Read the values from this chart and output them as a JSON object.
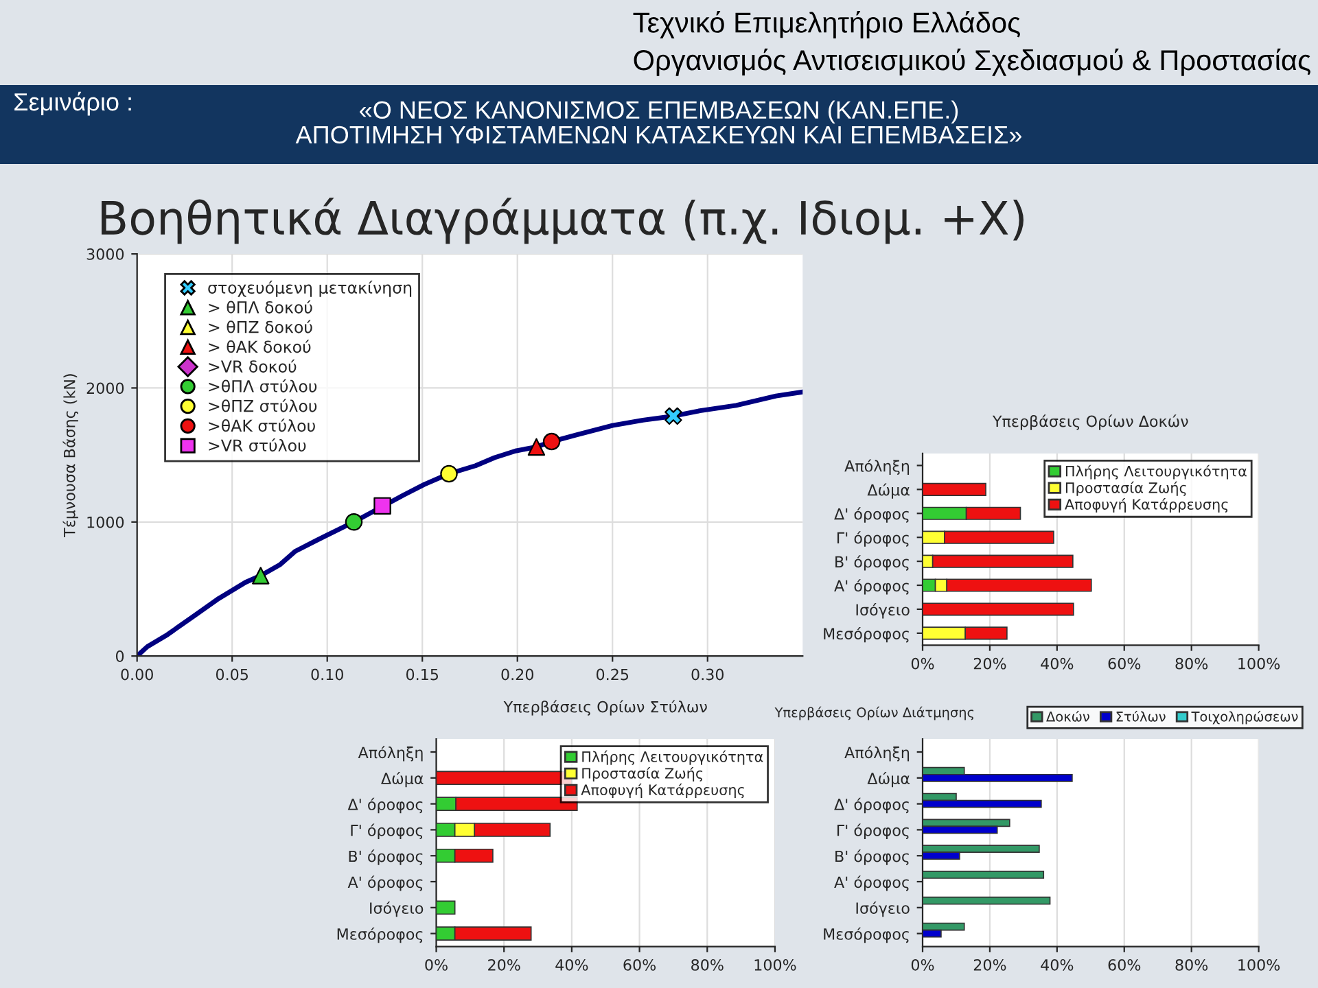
{
  "chart_data": [
    {
      "type": "line",
      "title": "Βοηθητικά Διαγράμματα (π.χ. Ιδιομ. +Χ)",
      "ylabel": "Τέμνουσα Βάσης (kN)",
      "annotations": [
        "Τεχνικό Επιμελητήριο Ελλάδος",
        "Οργανισμός Αντισεισμικού Σχεδιασμού & Προστασίας",
        "Σεμινάριο :",
        "«Ο ΝΕΟΣ ΚΑΝΟΝΙΣΜΟΣ ΕΠΕΜΒΑΣΕΩΝ (ΚΑΝ.ΕΠΕ.)\nΑΠΟΤΙΜΗΣΗ ΥΦΙΣΤΑΜΕΝΩΝ ΚΑΤΑΣΚΕΥΩΝ ΚΑΙ ΕΠΕΜΒΑΣΕΙΣ»"
      ],
      "xlim": [
        0,
        0.35
      ],
      "ylim": [
        0,
        3000
      ],
      "xticks": [
        {
          "value": 0,
          "label": "0.00"
        },
        {
          "value": 0.05,
          "label": "0.05"
        },
        {
          "value": 0.1,
          "label": "0.10"
        },
        {
          "value": 0.15,
          "label": "0.15"
        },
        {
          "value": 0.2,
          "label": "0.20"
        },
        {
          "value": 0.25,
          "label": "0.25"
        },
        {
          "value": 0.3,
          "label": "0.30"
        }
      ],
      "yticks": [
        0,
        1000,
        2000,
        3000
      ],
      "grid": true,
      "legend": "top left",
      "series": [
        {
          "type": "line",
          "color": "#000080",
          "marker": "none",
          "x": [
            0,
            0.0054,
            0.016,
            0.03,
            0.043,
            0.057,
            0.065,
            0.075,
            0.083,
            0.094,
            0.0996,
            0.114,
            0.14,
            0.151,
            0.164,
            0.178,
            0.188,
            0.199,
            0.21,
            0.218,
            0.231,
            0.25,
            0.266,
            0.282,
            0.296,
            0.315,
            0.336,
            0.35
          ],
          "values": [
            0,
            70,
            160,
            300,
            430,
            550,
            600,
            680,
            780,
            860,
            900,
            1000,
            1200,
            1280,
            1360,
            1420,
            1480,
            1530,
            1560,
            1600,
            1650,
            1720,
            1760,
            1790,
            1830,
            1870,
            1940,
            1970
          ]
        },
        {
          "type": "scatter",
          "name": "στοχευόμενη μετακίνηση",
          "color": "#33ccff",
          "marker": "cross",
          "x": [
            0.282
          ],
          "values": [
            1790
          ]
        },
        {
          "type": "scatter",
          "name": "> θΠΛ δοκού",
          "color": "#33cc33",
          "marker": "triangle",
          "x": [
            0.065
          ],
          "values": [
            600
          ]
        },
        {
          "type": "scatter",
          "name": "> θΠΖ δοκού",
          "color": "#ffff33",
          "marker": "triangle"
        },
        {
          "type": "scatter",
          "name": "> θΑΚ δοκού",
          "color": "#ee1111",
          "marker": "triangle",
          "x": [
            0.21
          ],
          "values": [
            1560
          ]
        },
        {
          "type": "scatter",
          "name": ">VR δοκού",
          "color": "#cc33cc",
          "marker": "diamond"
        },
        {
          "type": "scatter",
          "name": ">θΠΛ στύλου",
          "color": "#33cc33",
          "marker": "circle",
          "x": [
            0.114
          ],
          "values": [
            1000
          ]
        },
        {
          "type": "scatter",
          "name": ">θΠΖ στύλου",
          "color": "#ffff33",
          "marker": "circle",
          "x": [
            0.164
          ],
          "values": [
            1360
          ]
        },
        {
          "type": "scatter",
          "name": ">θΑΚ στύλου",
          "color": "#ee1111",
          "marker": "circle",
          "x": [
            0.218
          ],
          "values": [
            1600
          ]
        },
        {
          "type": "scatter",
          "name": ">VR στύλου",
          "color": "#ee33ee",
          "marker": "square",
          "x": [
            0.129
          ],
          "values": [
            1120
          ]
        }
      ]
    },
    {
      "type": "bar",
      "orientation": "horizontal",
      "stacked": true,
      "title": "Υπερβάσεις Ορίων Δοκών",
      "categories": [
        "Απόληξη",
        "Δώμα",
        "Δ' όροφος",
        "Γ' όροφος",
        "Β' όροφος",
        "Α' όροφος",
        "Ισόγειο",
        "Μεσόροφος"
      ],
      "xlim": [
        0,
        100
      ],
      "xticks": [
        {
          "value": 0,
          "label": "0%"
        },
        {
          "value": 20,
          "label": "20%"
        },
        {
          "value": 40,
          "label": "40%"
        },
        {
          "value": 60,
          "label": "60%"
        },
        {
          "value": 80,
          "label": "80%"
        },
        {
          "value": 100,
          "label": "100%"
        }
      ],
      "grid": "x",
      "legend": "top right",
      "series": [
        {
          "name": "Πλήρης Λειτουργικότητα",
          "color": "#33cc33",
          "values": [
            null,
            null,
            13,
            null,
            null,
            3.8,
            null,
            null
          ]
        },
        {
          "name": "Προστασία Ζωής",
          "color": "#ffff33",
          "values": [
            null,
            null,
            null,
            6.5,
            3,
            3.4,
            null,
            12.7
          ]
        },
        {
          "name": "Αποφυγή Κατάρρευσης",
          "color": "#ee1111",
          "values": [
            null,
            18.8,
            16.1,
            32.5,
            41.7,
            43,
            44.9,
            12.4
          ]
        }
      ]
    },
    {
      "type": "bar",
      "orientation": "horizontal",
      "stacked": true,
      "title": "Υπερβάσεις Ορίων Στύλων",
      "categories": [
        "Απόληξη",
        "Δώμα",
        "Δ' όροφος",
        "Γ' όροφος",
        "Β' όροφος",
        "Α' όροφος",
        "Ισόγειο",
        "Μεσόροφος"
      ],
      "xlim": [
        0,
        100
      ],
      "xticks": [
        {
          "value": 0,
          "label": "0%"
        },
        {
          "value": 20,
          "label": "20%"
        },
        {
          "value": 40,
          "label": "40%"
        },
        {
          "value": 60,
          "label": "60%"
        },
        {
          "value": 80,
          "label": "80%"
        },
        {
          "value": 100,
          "label": "100%"
        }
      ],
      "grid": "x",
      "legend": "top right",
      "series": [
        {
          "name": "Πλήρης Λειτουργικότητα",
          "color": "#33cc33",
          "values": [
            null,
            null,
            5.8,
            5.5,
            5.5,
            null,
            5.5,
            5.5
          ]
        },
        {
          "name": "Προστασία Ζωής",
          "color": "#ffff33",
          "values": [
            null,
            null,
            null,
            5.8,
            null,
            null,
            null,
            null
          ]
        },
        {
          "name": "Αποφυγή Κατάρρευσης",
          "color": "#ee1111",
          "values": [
            null,
            40,
            35.8,
            22.3,
            11.2,
            null,
            null,
            22.5
          ]
        }
      ]
    },
    {
      "type": "bar",
      "orientation": "horizontal",
      "title": "Υπερβάσεις Ορίων Διάτμησης",
      "categories": [
        "Απόληξη",
        "Δώμα",
        "Δ' όροφος",
        "Γ' όροφος",
        "Β' όροφος",
        "Α' όροφος",
        "Ισόγειο",
        "Μεσόροφος"
      ],
      "xlim": [
        0,
        100
      ],
      "xticks": [
        {
          "value": 0,
          "label": "0%"
        },
        {
          "value": 20,
          "label": "20%"
        },
        {
          "value": 40,
          "label": "40%"
        },
        {
          "value": 60,
          "label": "60%"
        },
        {
          "value": 80,
          "label": "80%"
        },
        {
          "value": 100,
          "label": "100%"
        }
      ],
      "grid": "x",
      "legend": "top",
      "series": [
        {
          "name": "Δοκών",
          "color": "#339966",
          "values": [
            null,
            12.4,
            10,
            25.9,
            34.7,
            36,
            37.9,
            12.4
          ]
        },
        {
          "name": "Στύλων",
          "color": "#0000cc",
          "values": [
            null,
            44.5,
            35.3,
            22.2,
            11,
            null,
            null,
            5.5
          ]
        },
        {
          "name": "Τοιχοληρώσεων",
          "color": "#33cccc",
          "values": [
            null,
            null,
            null,
            null,
            null,
            null,
            null,
            null
          ]
        }
      ]
    }
  ]
}
